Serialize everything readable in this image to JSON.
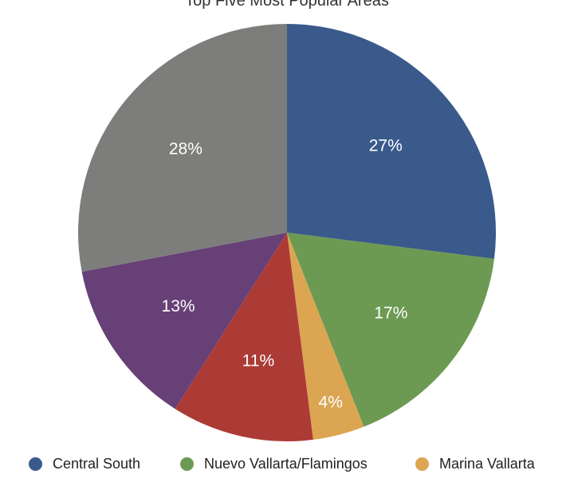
{
  "chart_data": {
    "type": "pie",
    "title": "Top Five Most Popular Areas",
    "legend_position": "bottom",
    "slices": [
      {
        "name": "Central South",
        "value": 27,
        "label": "27%",
        "color": "#3a5a8c"
      },
      {
        "name": "Nuevo Vallarta/Flamingos",
        "value": 17,
        "label": "17%",
        "color": "#6c9a52"
      },
      {
        "name": "Marina Vallarta",
        "value": 4,
        "label": "4%",
        "color": "#dba552"
      },
      {
        "name": "",
        "value": 11,
        "label": "11%",
        "color": "#ac3b36"
      },
      {
        "name": "",
        "value": 13,
        "label": "13%",
        "color": "#674077"
      },
      {
        "name": "",
        "value": 28,
        "label": "28%",
        "color": "#7d7d7b"
      }
    ]
  }
}
